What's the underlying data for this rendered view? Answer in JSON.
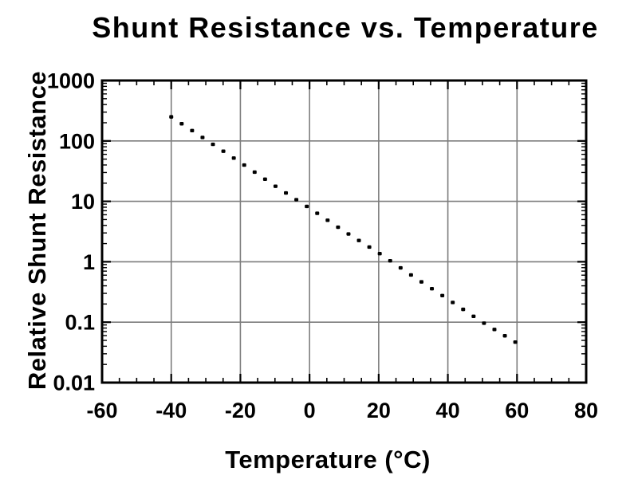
{
  "chart_data": {
    "type": "line",
    "title": "Shunt Resistance vs. Temperature",
    "xlabel": "Temperature (°C)",
    "ylabel": "Relative Shunt Resistance",
    "grid": true,
    "legend": false,
    "x_axis": {
      "min": -60,
      "max": 80,
      "major_ticks": [
        -60,
        -40,
        -20,
        0,
        20,
        40,
        60,
        80
      ],
      "tick_labels": [
        "-60",
        "-40",
        "-20",
        "0",
        "20",
        "40",
        "60",
        "80"
      ],
      "minor_tick_step": 5,
      "gridlines": [
        -40,
        -20,
        0,
        20,
        40,
        60
      ]
    },
    "y_axis": {
      "scale": "log",
      "min": 0.01,
      "max": 1000,
      "major_ticks": [
        1000,
        100,
        10,
        1,
        0.1,
        0.01
      ],
      "tick_labels": [
        "1000",
        "100",
        "10",
        "1",
        "0.1",
        "0.01"
      ],
      "gridlines": [
        100,
        10,
        1,
        0.1
      ]
    },
    "series": [
      {
        "name": "Relative shunt resistance",
        "style": "dotted",
        "color": "#000000",
        "points": [
          {
            "x": -40,
            "y": 250
          },
          {
            "x": -30,
            "y": 105
          },
          {
            "x": -20,
            "y": 44
          },
          {
            "x": -10,
            "y": 18
          },
          {
            "x": 0,
            "y": 7.7
          },
          {
            "x": 10,
            "y": 3.2
          },
          {
            "x": 20,
            "y": 1.4
          },
          {
            "x": 30,
            "y": 0.57
          },
          {
            "x": 40,
            "y": 0.24
          },
          {
            "x": 50,
            "y": 0.1
          },
          {
            "x": 60,
            "y": 0.045
          }
        ],
        "x_range_shown": [
          -40,
          59.5
        ],
        "dot_count": 34
      }
    ],
    "colors": {
      "background": "#ffffff",
      "frame": "#000000",
      "grid": "#7d7d7d",
      "text": "#000000",
      "dots": "#000000"
    }
  }
}
